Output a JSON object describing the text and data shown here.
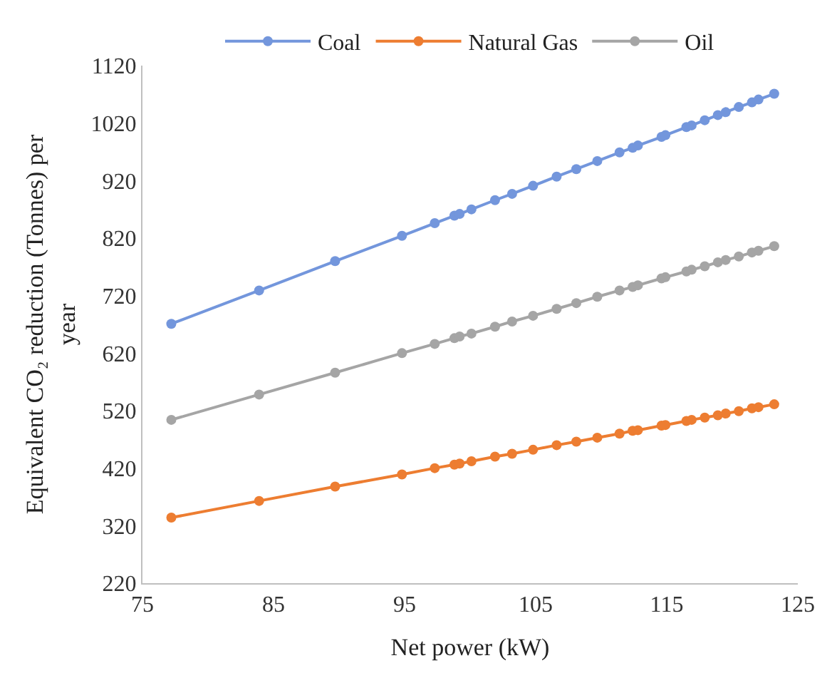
{
  "chart_data": {
    "type": "line",
    "xlabel": "Net power (kW)",
    "ylabel": "Equivalent CO₂ reduction (Tonnes) per year",
    "x": [
      77.2,
      83.9,
      89.7,
      94.8,
      97.3,
      98.8,
      99.2,
      100.1,
      101.9,
      103.2,
      104.8,
      106.6,
      108.1,
      109.7,
      111.4,
      112.4,
      112.8,
      114.6,
      114.9,
      116.5,
      116.9,
      117.9,
      118.9,
      119.5,
      120.5,
      121.5,
      122.0,
      123.2
    ],
    "series": [
      {
        "name": "Coal",
        "color": "#7396dc",
        "values": [
          671,
          729,
          780,
          824,
          846,
          859,
          862,
          870,
          886,
          897,
          911,
          927,
          940,
          954,
          969,
          977,
          981,
          996,
          999,
          1013,
          1016,
          1025,
          1034,
          1039,
          1048,
          1056,
          1061,
          1071
        ]
      },
      {
        "name": "Natural Gas",
        "color": "#ed7d31",
        "values": [
          334,
          363,
          388,
          409,
          420,
          426,
          428,
          432,
          440,
          445,
          452,
          460,
          466,
          473,
          480,
          485,
          486,
          494,
          495,
          502,
          504,
          508,
          512,
          515,
          519,
          524,
          526,
          531
        ]
      },
      {
        "name": "Oil",
        "color": "#a5a5a5",
        "values": [
          504,
          548,
          586,
          620,
          636,
          646,
          649,
          654,
          666,
          675,
          685,
          697,
          707,
          718,
          729,
          735,
          738,
          750,
          752,
          762,
          765,
          771,
          778,
          782,
          788,
          795,
          798,
          806
        ]
      }
    ],
    "xlim": [
      75,
      125
    ],
    "xticks": [
      75,
      85,
      95,
      105,
      115,
      125
    ],
    "ylim": [
      220,
      1120
    ],
    "yticks": [
      220,
      320,
      420,
      520,
      620,
      720,
      820,
      920,
      1020,
      1120
    ],
    "legend": "top",
    "marker": "circle",
    "line_style": "solid"
  }
}
